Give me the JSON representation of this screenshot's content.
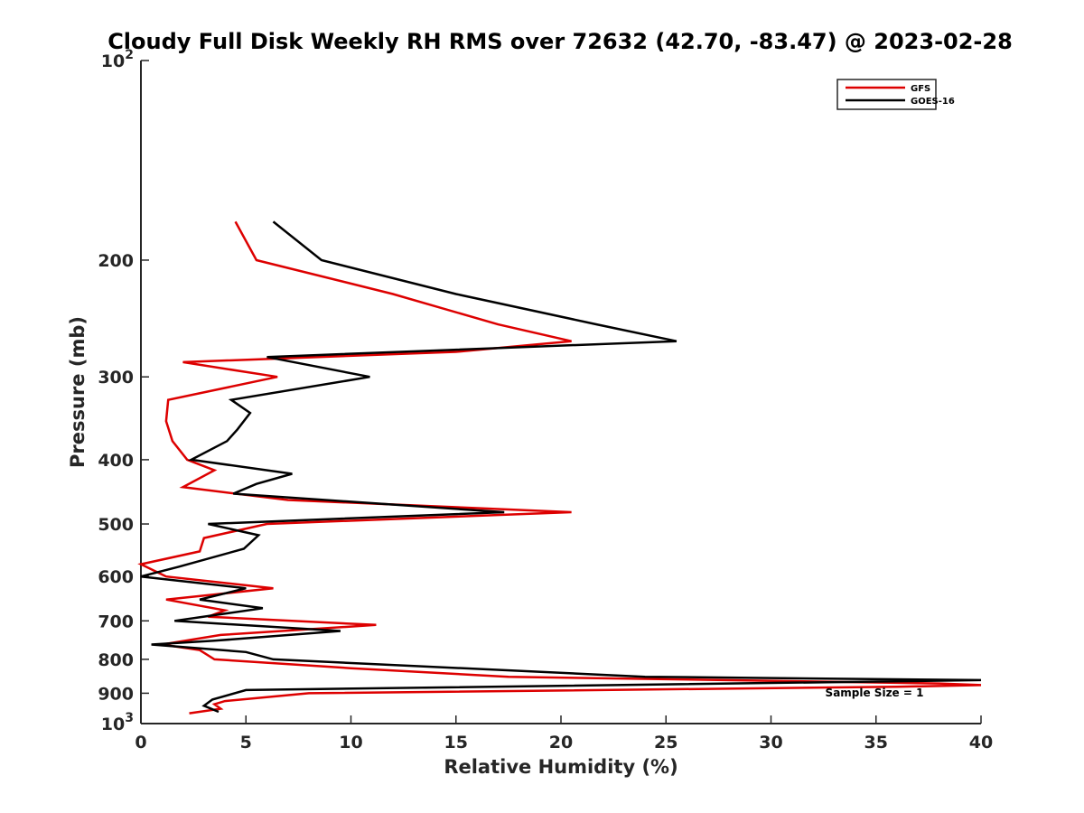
{
  "chart_data": {
    "type": "line",
    "title": "Cloudy Full Disk Weekly RH RMS over 72632 (42.70, -83.47) @ 2023-02-28",
    "xlabel": "Relative Humidity (%)",
    "ylabel": "Pressure (mb)",
    "xlim": [
      0,
      40
    ],
    "ylim": [
      100,
      1000
    ],
    "yscale": "log",
    "y_reversed": true,
    "grid": false,
    "legend_position": "top-right",
    "xticks": [
      0,
      5,
      10,
      15,
      20,
      25,
      30,
      35,
      40
    ],
    "xtick_labels": [
      "0",
      "5",
      "10",
      "15",
      "20",
      "25",
      "30",
      "35",
      "40"
    ],
    "yticks": [
      100,
      200,
      300,
      400,
      500,
      600,
      700,
      800,
      900,
      1000
    ],
    "ytick_labels": [
      {
        "base": "10",
        "exp": "2"
      },
      {
        "base": "200"
      },
      {
        "base": "300"
      },
      {
        "base": "400"
      },
      {
        "base": "500"
      },
      {
        "base": "600"
      },
      {
        "base": "700"
      },
      {
        "base": "800"
      },
      {
        "base": "900"
      },
      {
        "base": "10",
        "exp": "3"
      }
    ],
    "annotation": "Sample Size = 1",
    "series": [
      {
        "name": "GFS",
        "color": "#dd0000",
        "points": [
          [
            4.5,
            175
          ],
          [
            5.5,
            200
          ],
          [
            12,
            225
          ],
          [
            17,
            250
          ],
          [
            20.5,
            265
          ],
          [
            15,
            275
          ],
          [
            2,
            285
          ],
          [
            6.5,
            300
          ],
          [
            1.3,
            325
          ],
          [
            1.2,
            350
          ],
          [
            1.5,
            375
          ],
          [
            2.2,
            400
          ],
          [
            3.5,
            415
          ],
          [
            2,
            440
          ],
          [
            7,
            460
          ],
          [
            20.5,
            480
          ],
          [
            6,
            500
          ],
          [
            3,
            525
          ],
          [
            2.8,
            550
          ],
          [
            0,
            575
          ],
          [
            1.2,
            600
          ],
          [
            6.3,
            625
          ],
          [
            1.2,
            650
          ],
          [
            4,
            675
          ],
          [
            3.2,
            690
          ],
          [
            11.2,
            710
          ],
          [
            3.8,
            735
          ],
          [
            1,
            760
          ],
          [
            2.8,
            775
          ],
          [
            3.5,
            800
          ],
          [
            10,
            825
          ],
          [
            17.5,
            850
          ],
          [
            38,
            870
          ],
          [
            40,
            875
          ],
          [
            36,
            880
          ],
          [
            8,
            900
          ],
          [
            4,
            925
          ],
          [
            3.5,
            935
          ],
          [
            3.8,
            950
          ],
          [
            2.3,
            965
          ]
        ]
      },
      {
        "name": "GOES-16",
        "color": "#000000",
        "points": [
          [
            6.3,
            175
          ],
          [
            8.6,
            200
          ],
          [
            15,
            225
          ],
          [
            21.7,
            250
          ],
          [
            25.5,
            265
          ],
          [
            6,
            280
          ],
          [
            10.9,
            300
          ],
          [
            4.3,
            325
          ],
          [
            5.2,
            340
          ],
          [
            4.6,
            360
          ],
          [
            4.1,
            375
          ],
          [
            2.4,
            400
          ],
          [
            7.2,
            420
          ],
          [
            5.5,
            435
          ],
          [
            4.4,
            450
          ],
          [
            17.3,
            480
          ],
          [
            3.2,
            500
          ],
          [
            5.6,
            520
          ],
          [
            4.9,
            545
          ],
          [
            1.8,
            580
          ],
          [
            0,
            600
          ],
          [
            5,
            625
          ],
          [
            2.8,
            650
          ],
          [
            5.8,
            670
          ],
          [
            1.6,
            700
          ],
          [
            9.5,
            725
          ],
          [
            3.5,
            750
          ],
          [
            0.5,
            760
          ],
          [
            5,
            780
          ],
          [
            6.3,
            800
          ],
          [
            24,
            850
          ],
          [
            40,
            860
          ],
          [
            5,
            890
          ],
          [
            3.4,
            920
          ],
          [
            3,
            940
          ],
          [
            3.7,
            960
          ]
        ]
      }
    ]
  }
}
